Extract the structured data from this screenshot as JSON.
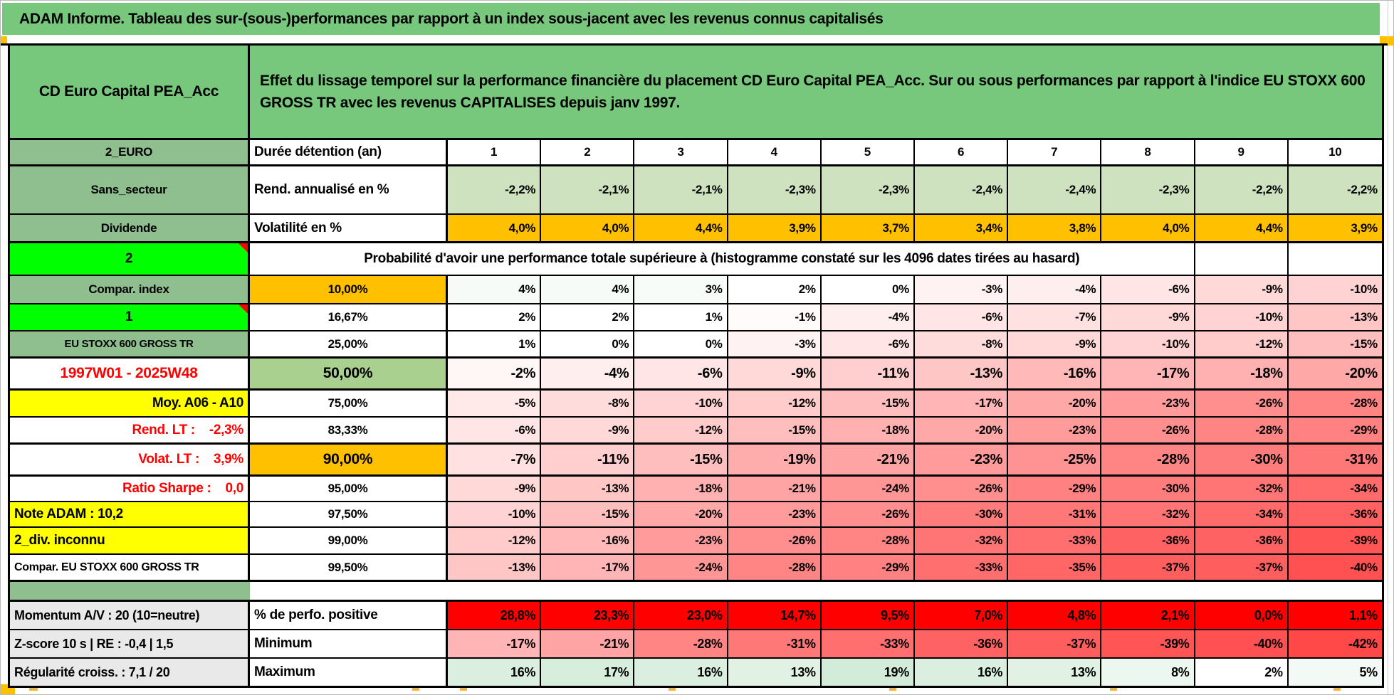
{
  "title": "ADAM Informe. Tableau des sur-(sous-)performances par rapport à un index sous-jacent avec les revenus connus capitalisés",
  "header": {
    "fund_name": "CD Euro Capital PEA_Acc",
    "description": "Effet du lissage temporel sur la performance financière du placement CD Euro Capital PEA_Acc. Sur ou sous performances par rapport à l'indice EU STOXX 600 GROSS TR avec les revenus CAPITALISES depuis janv 1997."
  },
  "years_row": {
    "label_a": "2_EURO",
    "label_b": "Durée détention (an)",
    "years": [
      "1",
      "2",
      "3",
      "4",
      "5",
      "6",
      "7",
      "8",
      "9",
      "10"
    ]
  },
  "metric_rows": [
    {
      "id": "rend",
      "label_a": "Sans_secteur",
      "label_b": "Rend. annualisé en %",
      "cell_bg": "#cfe2c0",
      "values": [
        "-2,2%",
        "-2,1%",
        "-2,1%",
        "-2,3%",
        "-2,3%",
        "-2,4%",
        "-2,4%",
        "-2,3%",
        "-2,2%",
        "-2,2%"
      ]
    },
    {
      "id": "volat",
      "label_a": "Dividende",
      "label_b": "Volatilité en %",
      "cell_bg": "#ffc000",
      "values": [
        "4,0%",
        "4,0%",
        "4,4%",
        "3,9%",
        "3,7%",
        "3,4%",
        "3,8%",
        "4,0%",
        "4,4%",
        "3,9%"
      ]
    }
  ],
  "probability_banner": {
    "label_a": "2",
    "text": "Probabilité d'avoir une performance totale supérieure à (histogramme constaté sur les 4096 dates tirées au hasard)"
  },
  "probability_rows": [
    {
      "id": "p10",
      "label_a": "Compar. index",
      "a_style": "sage",
      "threshold": "10,00%",
      "b_style": "orange",
      "values": [
        "4%",
        "4%",
        "3%",
        "2%",
        "0%",
        "-3%",
        "-4%",
        "-6%",
        "-9%",
        "-10%"
      ]
    },
    {
      "id": "p16",
      "label_a": "1",
      "a_style": "bright-green",
      "a_marker": true,
      "threshold": "16,67%",
      "b_style": "white",
      "values": [
        "2%",
        "2%",
        "1%",
        "-1%",
        "-4%",
        "-6%",
        "-7%",
        "-9%",
        "-10%",
        "-13%"
      ]
    },
    {
      "id": "p25",
      "label_a": "EU STOXX 600 GROSS TR",
      "a_style": "sage-small",
      "threshold": "25,00%",
      "b_style": "white",
      "values": [
        "1%",
        "0%",
        "0%",
        "-3%",
        "-6%",
        "-8%",
        "-9%",
        "-10%",
        "-12%",
        "-15%"
      ]
    },
    {
      "id": "p50",
      "label_a": "1997W01 - 2025W48",
      "a_style": "red-center",
      "threshold": "50,00%",
      "b_style": "green-big",
      "emphasis": true,
      "values": [
        "-2%",
        "-4%",
        "-6%",
        "-9%",
        "-11%",
        "-13%",
        "-16%",
        "-17%",
        "-18%",
        "-20%"
      ]
    },
    {
      "id": "p75",
      "label_a": "Moy. A06 - A10",
      "a_style": "yellow-right",
      "threshold": "75,00%",
      "b_style": "white",
      "values": [
        "-5%",
        "-8%",
        "-10%",
        "-12%",
        "-15%",
        "-17%",
        "-20%",
        "-23%",
        "-26%",
        "-28%"
      ]
    },
    {
      "id": "p83",
      "label_a": "Rend. LT :    -2,3%",
      "a_style": "red-right",
      "threshold": "83,33%",
      "b_style": "white",
      "values": [
        "-6%",
        "-9%",
        "-12%",
        "-15%",
        "-18%",
        "-20%",
        "-23%",
        "-26%",
        "-28%",
        "-29%"
      ]
    },
    {
      "id": "p90",
      "label_a": "Volat. LT :    3,9%",
      "a_style": "red-right",
      "threshold": "90,00%",
      "b_style": "orange-big",
      "emphasis": true,
      "values": [
        "-7%",
        "-11%",
        "-15%",
        "-19%",
        "-21%",
        "-23%",
        "-25%",
        "-28%",
        "-30%",
        "-31%"
      ]
    },
    {
      "id": "p95",
      "label_a": "Ratio Sharpe :    0,0",
      "a_style": "red-right",
      "threshold": "95,00%",
      "b_style": "white",
      "values": [
        "-9%",
        "-13%",
        "-18%",
        "-21%",
        "-24%",
        "-26%",
        "-29%",
        "-30%",
        "-32%",
        "-34%"
      ]
    },
    {
      "id": "p975",
      "label_a": "Note ADAM : 10,2",
      "a_style": "yellow-left",
      "threshold": "97,50%",
      "b_style": "white",
      "values": [
        "-10%",
        "-15%",
        "-20%",
        "-23%",
        "-26%",
        "-30%",
        "-31%",
        "-32%",
        "-34%",
        "-36%"
      ]
    },
    {
      "id": "p99",
      "label_a": "2_div. inconnu",
      "a_style": "yellow-left",
      "threshold": "99,00%",
      "b_style": "white",
      "values": [
        "-12%",
        "-16%",
        "-23%",
        "-26%",
        "-28%",
        "-32%",
        "-33%",
        "-36%",
        "-36%",
        "-39%"
      ]
    },
    {
      "id": "p995",
      "label_a": "Compar. EU STOXX 600 GROSS TR",
      "a_style": "white-left",
      "threshold": "99,50%",
      "b_style": "white",
      "values": [
        "-13%",
        "-17%",
        "-24%",
        "-28%",
        "-29%",
        "-33%",
        "-35%",
        "-37%",
        "-37%",
        "-40%"
      ]
    }
  ],
  "bottom_rows": [
    {
      "id": "perfo",
      "label_a": "Momentum A/V : 20 (10=neutre)",
      "label_b": "% de perfo. positive",
      "cell_bg": "#ff0000",
      "values": [
        "28,8%",
        "23,3%",
        "23,0%",
        "14,7%",
        "9,5%",
        "7,0%",
        "4,8%",
        "2,1%",
        "0,0%",
        "1,1%"
      ]
    },
    {
      "id": "minimum",
      "label_a": "Z-score 10 s | RE : -0,4 | 1,5",
      "label_b": "Minimum",
      "heat": "auto",
      "values": [
        "-17%",
        "-21%",
        "-28%",
        "-31%",
        "-33%",
        "-36%",
        "-37%",
        "-39%",
        "-40%",
        "-42%"
      ]
    },
    {
      "id": "maximum",
      "label_a": "Régularité croiss. : 7,1 / 20",
      "label_b": "Maximum",
      "heat": "auto",
      "values": [
        "16%",
        "17%",
        "16%",
        "13%",
        "19%",
        "16%",
        "13%",
        "8%",
        "2%",
        "5%"
      ]
    }
  ],
  "colors": {
    "banner_green": "#77c77c",
    "label_green": "#8fbe8f",
    "bright_green": "#00ff00",
    "orange": "#ffc000",
    "yellow": "#ffff00",
    "light_green_cells": "#cfe2c0",
    "median_green": "#a9d08e",
    "pure_red": "#ff0000",
    "red_text": "#ff0000",
    "gray_label": "#e9e9e9"
  }
}
